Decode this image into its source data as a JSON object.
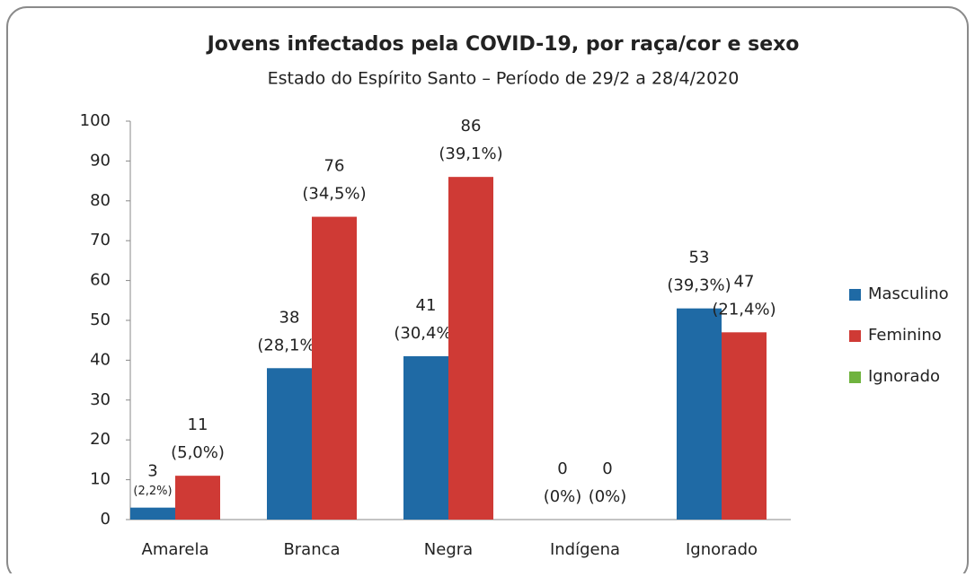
{
  "chart_data": {
    "type": "bar",
    "title": "Jovens infectados pela COVID-19, por raça/cor e sexo",
    "subtitle": "Estado do Espírito Santo – Período de 29/2 a 28/4/2020",
    "categories": [
      "Amarela",
      "Branca",
      "Negra",
      "Indígena",
      "Ignorado"
    ],
    "series": [
      {
        "name": "Masculino",
        "color": "#1f6aa5",
        "values": [
          3,
          38,
          41,
          0,
          53
        ],
        "percent_labels": [
          "(2,2%)",
          "(28,1%)",
          "(30,4%)",
          "(0%)",
          "(39,3%)"
        ]
      },
      {
        "name": "Feminino",
        "color": "#cf3a35",
        "values": [
          11,
          76,
          86,
          0,
          47
        ],
        "percent_labels": [
          "(5,0%)",
          "(34,5%)",
          "(39,1%)",
          "(0%)",
          "(21,4%)"
        ]
      },
      {
        "name": "Ignorado",
        "color": "#6fb33e",
        "values": [
          null,
          null,
          null,
          null,
          null
        ]
      }
    ],
    "ylim": [
      0,
      100
    ],
    "yticks": [
      0,
      10,
      20,
      30,
      40,
      50,
      60,
      70,
      80,
      90,
      100
    ],
    "legend": "right"
  }
}
